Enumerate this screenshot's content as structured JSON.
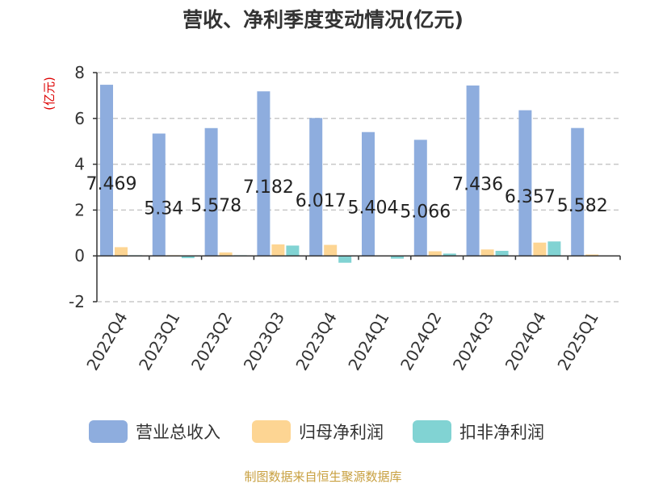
{
  "chart_data": {
    "type": "bar",
    "title": "营收、净利季度变动情况(亿元)",
    "ylabel": "(亿元)",
    "categories": [
      "2022Q4",
      "2023Q1",
      "2023Q2",
      "2023Q3",
      "2023Q4",
      "2024Q1",
      "2024Q2",
      "2024Q3",
      "2024Q4",
      "2025Q1"
    ],
    "series": [
      {
        "name": "营业总收入",
        "color": "#8eadde",
        "values": [
          7.469,
          5.34,
          5.578,
          7.182,
          6.017,
          5.404,
          5.066,
          7.436,
          6.357,
          5.582
        ]
      },
      {
        "name": "归母净利润",
        "color": "#fdd593",
        "values": [
          0.38,
          0.03,
          0.15,
          0.5,
          0.48,
          0.02,
          0.2,
          0.28,
          0.58,
          0.06
        ]
      },
      {
        "name": "扣非净利润",
        "color": "#81d3d3",
        "values": [
          0.03,
          -0.1,
          0.03,
          0.45,
          -0.3,
          -0.12,
          0.1,
          0.22,
          0.63,
          0.01
        ]
      }
    ],
    "data_labels": [
      "7.469",
      "5.34",
      "5.578",
      "7.182",
      "6.017",
      "5.404",
      "5.066",
      "7.436",
      "6.357",
      "5.582"
    ],
    "ylim": [
      -2,
      8
    ],
    "yticks": [
      -2,
      0,
      2,
      4,
      6,
      8
    ],
    "grid": true,
    "legend_position": "bottom"
  },
  "footer": "制图数据来自恒生聚源数据库"
}
